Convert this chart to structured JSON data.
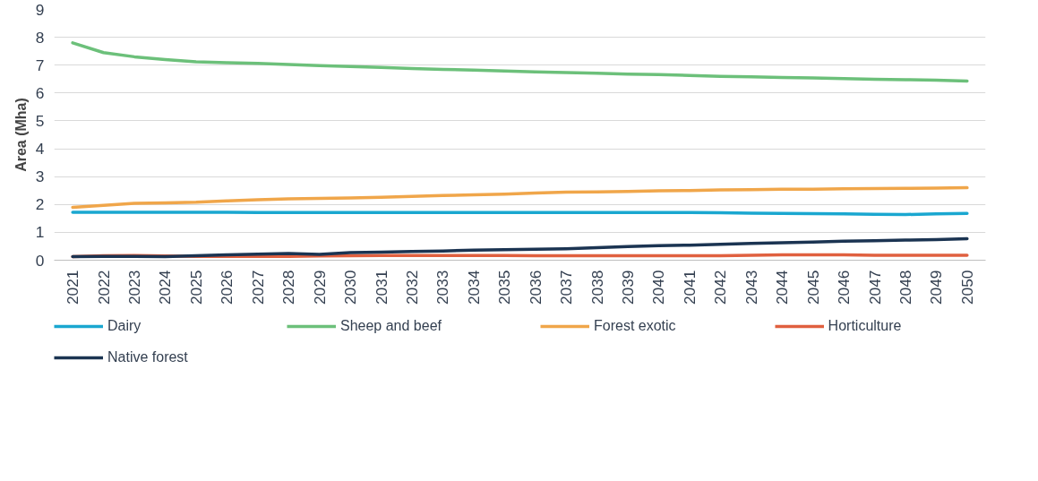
{
  "chart_data": {
    "type": "line",
    "ylabel": "Area (Mha)",
    "categories": [
      "2021",
      "2022",
      "2023",
      "2024",
      "2025",
      "2026",
      "2027",
      "2028",
      "2029",
      "2030",
      "2031",
      "2032",
      "2033",
      "2034",
      "2035",
      "2036",
      "2037",
      "2038",
      "2039",
      "2040",
      "2041",
      "2042",
      "2043",
      "2044",
      "2045",
      "2046",
      "2047",
      "2048",
      "2049",
      "2050"
    ],
    "ylim": [
      0,
      9
    ],
    "yticks": [
      0,
      1,
      2,
      3,
      4,
      5,
      6,
      7,
      8,
      9
    ],
    "grid": "y",
    "legend": "bottom",
    "marker": "none",
    "line_style": "solid",
    "series": [
      {
        "name": "Dairy",
        "color": "#1aa7d0",
        "values": [
          1.72,
          1.72,
          1.72,
          1.72,
          1.72,
          1.72,
          1.71,
          1.71,
          1.71,
          1.71,
          1.71,
          1.71,
          1.71,
          1.71,
          1.71,
          1.71,
          1.71,
          1.71,
          1.71,
          1.71,
          1.71,
          1.7,
          1.69,
          1.68,
          1.67,
          1.66,
          1.65,
          1.64,
          1.66,
          1.68
        ]
      },
      {
        "name": "Sheep and beef",
        "color": "#6cc07a",
        "values": [
          7.8,
          7.45,
          7.3,
          7.2,
          7.12,
          7.09,
          7.06,
          7.02,
          6.98,
          6.95,
          6.92,
          6.88,
          6.85,
          6.82,
          6.79,
          6.76,
          6.73,
          6.71,
          6.68,
          6.66,
          6.63,
          6.6,
          6.58,
          6.56,
          6.54,
          6.52,
          6.49,
          6.48,
          6.46,
          6.43
        ]
      },
      {
        "name": "Forest exotic",
        "color": "#f0a64a",
        "values": [
          1.9,
          1.97,
          2.04,
          2.06,
          2.08,
          2.13,
          2.17,
          2.2,
          2.22,
          2.23,
          2.26,
          2.29,
          2.32,
          2.35,
          2.37,
          2.41,
          2.44,
          2.45,
          2.47,
          2.49,
          2.5,
          2.52,
          2.53,
          2.55,
          2.55,
          2.56,
          2.57,
          2.58,
          2.59,
          2.6
        ]
      },
      {
        "name": "Horticulture",
        "color": "#e0603f",
        "values": [
          0.13,
          0.16,
          0.17,
          0.15,
          0.14,
          0.14,
          0.14,
          0.14,
          0.15,
          0.16,
          0.17,
          0.17,
          0.17,
          0.17,
          0.17,
          0.16,
          0.16,
          0.16,
          0.16,
          0.16,
          0.16,
          0.16,
          0.18,
          0.19,
          0.19,
          0.19,
          0.18,
          0.18,
          0.18,
          0.18
        ]
      },
      {
        "name": "Native forest",
        "color": "#1b3452",
        "values": [
          0.13,
          0.14,
          0.14,
          0.13,
          0.16,
          0.19,
          0.22,
          0.24,
          0.21,
          0.27,
          0.29,
          0.31,
          0.33,
          0.36,
          0.38,
          0.39,
          0.41,
          0.45,
          0.49,
          0.52,
          0.54,
          0.57,
          0.6,
          0.63,
          0.65,
          0.68,
          0.7,
          0.72,
          0.74,
          0.77
        ]
      }
    ]
  }
}
